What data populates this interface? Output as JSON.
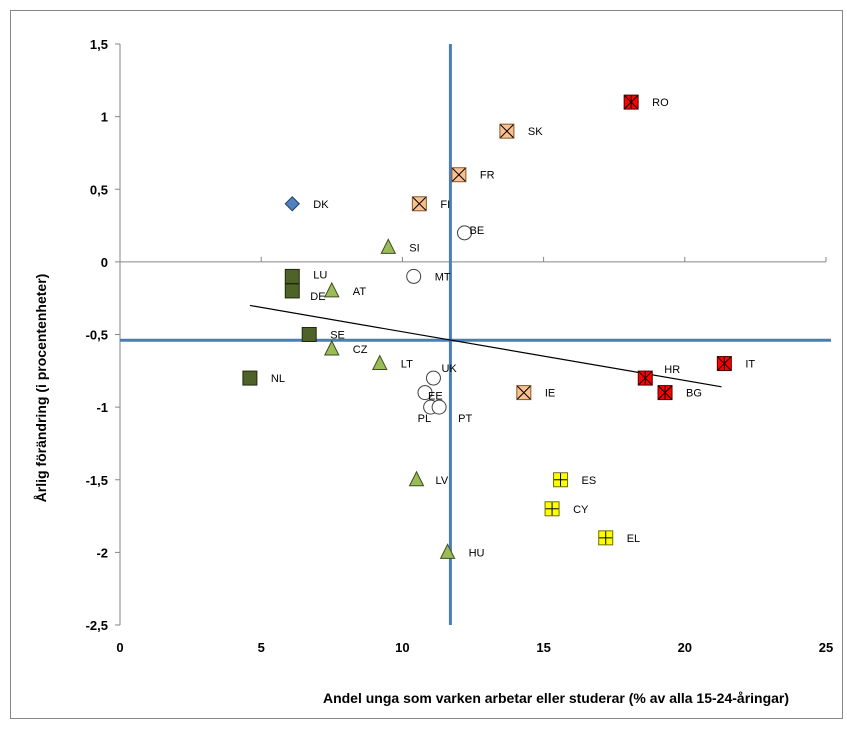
{
  "chart_data": {
    "type": "scatter",
    "title": "",
    "xlabel": "Andel unga som varken arbetar eller studerar (% av alla 15-24-åringar)",
    "ylabel": "Årlig förändring (i procentenheter)",
    "xlim": [
      0,
      25
    ],
    "ylim": [
      -2.5,
      1.5
    ],
    "xticks": [
      0,
      5,
      10,
      15,
      20,
      25
    ],
    "xtick_labels": [
      "0",
      "5",
      "10",
      "15",
      "20",
      "25"
    ],
    "yticks": [
      1.5,
      1,
      0.5,
      0,
      -0.5,
      -1,
      -1.5,
      -2,
      -2.5
    ],
    "ytick_labels": [
      "1,5",
      "1",
      "0,5",
      "0",
      "-0,5",
      "-1",
      "-1,5",
      "-2",
      "-2,5"
    ],
    "grid": false,
    "legend": "none",
    "reference_lines": {
      "vertical_x": 11.7,
      "horizontal_y": -0.54,
      "color": "#4a7ebb"
    },
    "trendline": {
      "x1": 4.6,
      "y1": -0.3,
      "x2": 21.3,
      "y2": -0.86,
      "color": "#000000"
    },
    "marker_styles": {
      "diamond": {
        "fill": "#4f81bd",
        "stroke": "#1f3f6f"
      },
      "square": {
        "fill": "#4f6228",
        "stroke": "#1e2a0e"
      },
      "triangle": {
        "fill": "#9bbb59",
        "stroke": "#3c4f1e"
      },
      "circle": {
        "fill": "#ffffff",
        "stroke": "#404040"
      },
      "square-x": {
        "fill": "#fac090",
        "stroke": "#7f5a2a"
      },
      "square-star": {
        "fill": "#ff0000",
        "stroke": "#4d0000"
      },
      "square-plus": {
        "fill": "#ffff00",
        "stroke": "#6e6e00"
      }
    },
    "points": [
      {
        "label": "RO",
        "x": 18.1,
        "y": 1.1,
        "marker": "square-star"
      },
      {
        "label": "SK",
        "x": 13.7,
        "y": 0.9,
        "marker": "square-x"
      },
      {
        "label": "FR",
        "x": 12.0,
        "y": 0.6,
        "marker": "square-x"
      },
      {
        "label": "DK",
        "x": 6.1,
        "y": 0.4,
        "marker": "diamond"
      },
      {
        "label": "FI",
        "x": 10.6,
        "y": 0.4,
        "marker": "square-x"
      },
      {
        "label": "BE",
        "x": 12.2,
        "y": 0.2,
        "marker": "circle"
      },
      {
        "label": "SI",
        "x": 9.5,
        "y": 0.1,
        "marker": "triangle"
      },
      {
        "label": "LU",
        "x": 6.1,
        "y": -0.1,
        "marker": "square"
      },
      {
        "label": "MT",
        "x": 10.4,
        "y": -0.1,
        "marker": "circle"
      },
      {
        "label": "DE",
        "x": 6.1,
        "y": -0.2,
        "marker": "square"
      },
      {
        "label": "AT",
        "x": 7.5,
        "y": -0.2,
        "marker": "triangle"
      },
      {
        "label": "SE",
        "x": 6.7,
        "y": -0.5,
        "marker": "square"
      },
      {
        "label": "CZ",
        "x": 7.5,
        "y": -0.6,
        "marker": "triangle"
      },
      {
        "label": "LT",
        "x": 9.2,
        "y": -0.7,
        "marker": "triangle"
      },
      {
        "label": "NL",
        "x": 4.6,
        "y": -0.8,
        "marker": "square"
      },
      {
        "label": "UK",
        "x": 11.1,
        "y": -0.8,
        "marker": "circle"
      },
      {
        "label": "EE",
        "x": 10.8,
        "y": -0.9,
        "marker": "circle"
      },
      {
        "label": "PL",
        "x": 11.0,
        "y": -1.0,
        "marker": "circle"
      },
      {
        "label": "PT",
        "x": 11.3,
        "y": -1.0,
        "marker": "circle"
      },
      {
        "label": "IE",
        "x": 14.3,
        "y": -0.9,
        "marker": "square-x"
      },
      {
        "label": "HR",
        "x": 18.6,
        "y": -0.8,
        "marker": "square-star"
      },
      {
        "label": "BG",
        "x": 19.3,
        "y": -0.9,
        "marker": "square-star"
      },
      {
        "label": "IT",
        "x": 21.4,
        "y": -0.7,
        "marker": "square-star"
      },
      {
        "label": "LV",
        "x": 10.5,
        "y": -1.5,
        "marker": "triangle"
      },
      {
        "label": "ES",
        "x": 15.6,
        "y": -1.5,
        "marker": "square-plus"
      },
      {
        "label": "CY",
        "x": 15.3,
        "y": -1.7,
        "marker": "square-plus"
      },
      {
        "label": "EL",
        "x": 17.2,
        "y": -1.9,
        "marker": "square-plus"
      },
      {
        "label": "HU",
        "x": 11.6,
        "y": -2.0,
        "marker": "triangle"
      }
    ]
  }
}
